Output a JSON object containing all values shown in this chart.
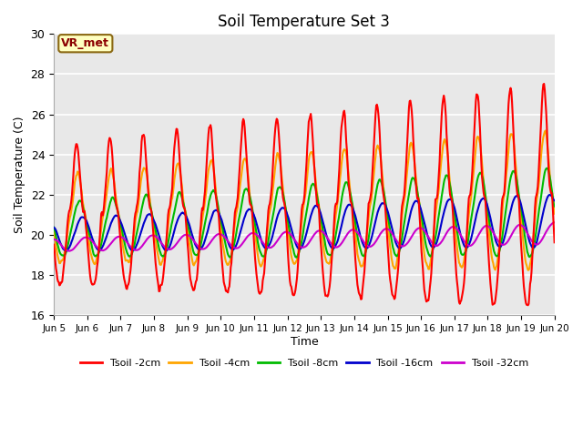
{
  "title": "Soil Temperature Set 3",
  "xlabel": "Time",
  "ylabel": "Soil Temperature (C)",
  "ylim": [
    16,
    30
  ],
  "annotation_text": "VR_met",
  "annotation_box_color": "#ffffc0",
  "annotation_text_color": "#8b0000",
  "annotation_border_color": "#8b6914",
  "fig_bg_color": "#ffffff",
  "plot_bg_color": "#e8e8e8",
  "grid_color": "#ffffff",
  "colors": {
    "Tsoil -2cm": "#ff0000",
    "Tsoil -4cm": "#ffa500",
    "Tsoil -8cm": "#00bb00",
    "Tsoil -16cm": "#0000cc",
    "Tsoil -32cm": "#cc00cc"
  },
  "xtick_labels": [
    "Jun 5",
    "Jun 6",
    "Jun 7",
    "Jun 8",
    "Jun 9",
    "Jun 10",
    "Jun 11",
    "Jun 12",
    "Jun 13",
    "Jun 14",
    "Jun 15",
    "Jun 16",
    "Jun 17",
    "Jun 18",
    "Jun 19",
    "Jun 20"
  ],
  "ytick_labels": [
    16,
    18,
    20,
    22,
    24,
    26,
    28,
    30
  ],
  "linewidth": 1.5
}
